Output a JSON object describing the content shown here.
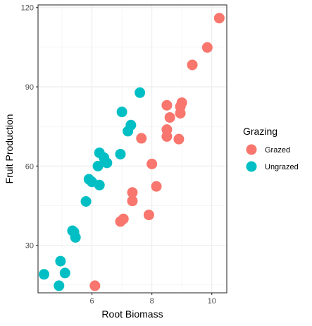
{
  "chart_data": {
    "type": "scatter",
    "title": "",
    "xlabel": "Root Biomass",
    "ylabel": "Fruit Production",
    "xlim": [
      4.2,
      10.5
    ],
    "ylim": [
      12,
      121
    ],
    "xticks": [
      6,
      8,
      10
    ],
    "yticks": [
      30,
      60,
      90,
      120
    ],
    "grid": true,
    "legend": {
      "title": "Grazing",
      "position": "right"
    },
    "series": [
      {
        "name": "Grazed",
        "color": "#F8766D",
        "points": [
          {
            "x": 6.1,
            "y": 14.7
          },
          {
            "x": 6.95,
            "y": 39.0
          },
          {
            "x": 7.05,
            "y": 40.0
          },
          {
            "x": 7.35,
            "y": 50.0
          },
          {
            "x": 7.35,
            "y": 46.8
          },
          {
            "x": 7.65,
            "y": 70.5
          },
          {
            "x": 7.9,
            "y": 41.5
          },
          {
            "x": 8.0,
            "y": 60.8
          },
          {
            "x": 8.15,
            "y": 52.3
          },
          {
            "x": 8.5,
            "y": 83.0
          },
          {
            "x": 8.5,
            "y": 73.8
          },
          {
            "x": 8.5,
            "y": 71.2
          },
          {
            "x": 8.6,
            "y": 78.4
          },
          {
            "x": 8.9,
            "y": 70.2
          },
          {
            "x": 8.95,
            "y": 82.5
          },
          {
            "x": 9.0,
            "y": 84.0
          },
          {
            "x": 8.95,
            "y": 80.0
          },
          {
            "x": 9.35,
            "y": 98.3
          },
          {
            "x": 9.85,
            "y": 104.9
          },
          {
            "x": 10.25,
            "y": 116.0
          }
        ]
      },
      {
        "name": "Ungrazed",
        "color": "#00BFC4",
        "points": [
          {
            "x": 4.4,
            "y": 19.0
          },
          {
            "x": 4.9,
            "y": 14.7
          },
          {
            "x": 4.95,
            "y": 24.0
          },
          {
            "x": 5.1,
            "y": 19.5
          },
          {
            "x": 5.35,
            "y": 35.5
          },
          {
            "x": 5.45,
            "y": 33.0
          },
          {
            "x": 5.4,
            "y": 35.0
          },
          {
            "x": 5.8,
            "y": 46.6
          },
          {
            "x": 5.9,
            "y": 55.0
          },
          {
            "x": 6.0,
            "y": 54.0
          },
          {
            "x": 6.2,
            "y": 60.0
          },
          {
            "x": 6.25,
            "y": 52.8
          },
          {
            "x": 6.25,
            "y": 65.0
          },
          {
            "x": 6.4,
            "y": 63.2
          },
          {
            "x": 6.5,
            "y": 61.2
          },
          {
            "x": 6.95,
            "y": 64.5
          },
          {
            "x": 7.0,
            "y": 80.5
          },
          {
            "x": 7.2,
            "y": 73.2
          },
          {
            "x": 7.3,
            "y": 75.5
          },
          {
            "x": 7.6,
            "y": 87.8
          }
        ]
      }
    ]
  }
}
